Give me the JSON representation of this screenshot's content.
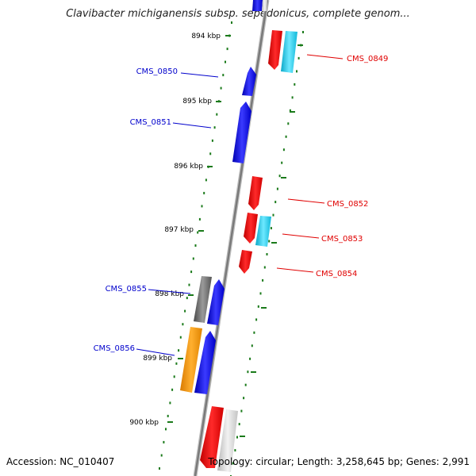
{
  "title": "Clavibacter michiganensis subsp. sepedonicus, complete genom...",
  "footer": {
    "accession": "Accession: NC_010407",
    "topology": "Topology: circular; Length: 3,258,645 bp; Genes: 2,991"
  },
  "colors": {
    "forward_gene": "#0000ee",
    "reverse_gene": "#ee0000",
    "rna_gene": "#00c8e6",
    "other_gene": "#ff9900",
    "pseudo_gene": "#777777",
    "backbone": "#888888",
    "tick": "#1a7a1a"
  },
  "ruler": [
    {
      "label": "894 kbp"
    },
    {
      "label": "895 kbp"
    },
    {
      "label": "896 kbp"
    },
    {
      "label": "897 kbp"
    },
    {
      "label": "898 kbp"
    },
    {
      "label": "899 kbp"
    },
    {
      "label": "900 kbp"
    }
  ],
  "gene_labels": [
    {
      "name": "CMS_0849",
      "strand": "reverse"
    },
    {
      "name": "CMS_0850",
      "strand": "forward"
    },
    {
      "name": "CMS_0851",
      "strand": "forward"
    },
    {
      "name": "CMS_0852",
      "strand": "reverse"
    },
    {
      "name": "CMS_0853",
      "strand": "reverse"
    },
    {
      "name": "CMS_0854",
      "strand": "reverse"
    },
    {
      "name": "CMS_0855",
      "strand": "forward"
    },
    {
      "name": "CMS_0856",
      "strand": "forward"
    }
  ]
}
